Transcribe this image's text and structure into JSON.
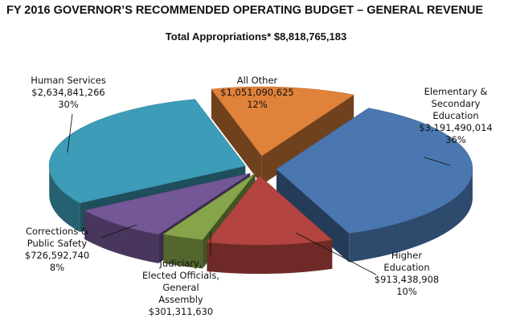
{
  "title": "FY 2016 GOVERNOR’S RECOMMENDED OPERATING BUDGET – GENERAL REVENUE",
  "subtitle": "Total Appropriations*  $8,818,765,183",
  "chart_data": {
    "type": "pie",
    "three_d": true,
    "exploded": true,
    "slices": [
      {
        "name": "Elementary & Secondary Education",
        "label_lines": [
          "Elementary &",
          "Secondary",
          "Education"
        ],
        "value": 3191490014,
        "value_text": "$3,191,490,014",
        "percent_text": "36%",
        "color": "#4A77B0"
      },
      {
        "name": "Higher Education",
        "label_lines": [
          "Higher",
          "Education"
        ],
        "value": 913438908,
        "value_text": "$913,438,908",
        "percent_text": "10%",
        "color": "#B3443F"
      },
      {
        "name": "Judiciary, Elected Officials, General Assembly",
        "label_lines": [
          "Judiciary,",
          "Elected Officials,",
          "General",
          "Assembly"
        ],
        "value": 301311630,
        "value_text": "$301,311,630",
        "percent_text": "",
        "color": "#86A54A"
      },
      {
        "name": "Corrections & Public Safety",
        "label_lines": [
          "Corrections  &",
          "Public Safety"
        ],
        "value": 726592740,
        "value_text": "$726,592,740",
        "percent_text": "8%",
        "color": "#745796"
      },
      {
        "name": "Human Services",
        "label_lines": [
          "Human Services"
        ],
        "value": 2634841266,
        "value_text": "$2,634,841,266",
        "percent_text": "30%",
        "color": "#3D9CB8"
      },
      {
        "name": "All Other",
        "label_lines": [
          "All Other"
        ],
        "value": 1051090625,
        "value_text": "$1,051,090,625",
        "percent_text": "12%",
        "color": "#E0823A"
      }
    ]
  }
}
